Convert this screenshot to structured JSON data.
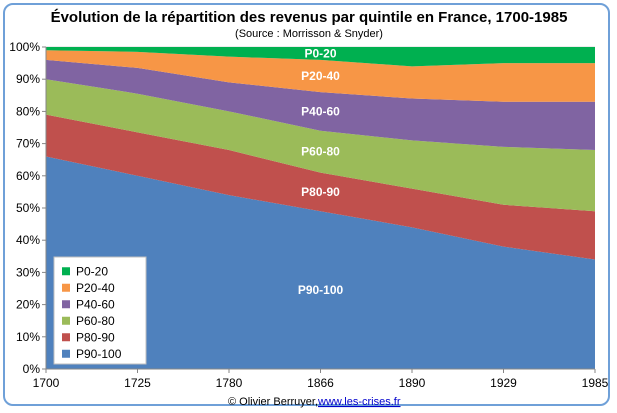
{
  "chart_data": {
    "type": "area",
    "stacked": true,
    "title": "Évolution de la répartition des revenus par quintile en France, 1700-1985",
    "subtitle": "(Source : Morrisson & Snyder)",
    "x": [
      "1700",
      "1725",
      "1780",
      "1866",
      "1890",
      "1929",
      "1985"
    ],
    "ylim": [
      0,
      100
    ],
    "yticks": [
      "0%",
      "10%",
      "20%",
      "30%",
      "40%",
      "50%",
      "60%",
      "70%",
      "80%",
      "90%",
      "100%"
    ],
    "series": [
      {
        "name": "P90-100",
        "color": "#4f81bd",
        "values": [
          66,
          60,
          54,
          49,
          44,
          38,
          34
        ]
      },
      {
        "name": "P80-90",
        "color": "#c0504d",
        "values": [
          13,
          13.5,
          14,
          12,
          12,
          13,
          15
        ]
      },
      {
        "name": "P60-80",
        "color": "#9bbb59",
        "values": [
          11,
          12,
          12,
          13,
          15,
          18,
          19
        ]
      },
      {
        "name": "P40-60",
        "color": "#8064a2",
        "values": [
          6,
          8,
          9,
          12,
          13,
          14,
          15
        ]
      },
      {
        "name": "P20-40",
        "color": "#f79646",
        "values": [
          3,
          5,
          8,
          10,
          10,
          12,
          12
        ]
      },
      {
        "name": "P0-20",
        "color": "#00b050",
        "values": [
          1,
          1.5,
          3,
          4,
          6,
          5,
          5
        ]
      }
    ],
    "legend_position": "bottom-left",
    "grid": true
  },
  "credit": {
    "author": "© Olivier Berruyer, ",
    "link": "www.les-crises.fr"
  }
}
